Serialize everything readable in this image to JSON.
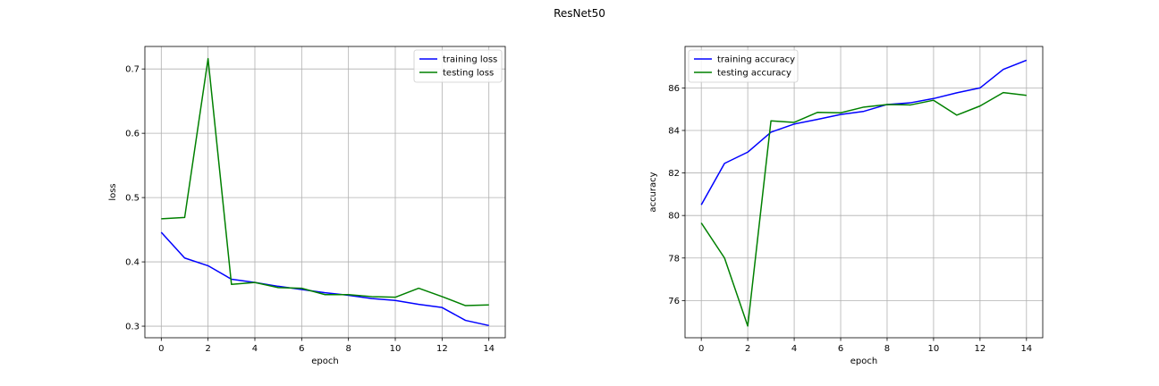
{
  "figure": {
    "title": "ResNet50"
  },
  "chart_data": [
    {
      "type": "line",
      "title": "",
      "xlabel": "epoch",
      "ylabel": "loss",
      "xlim": [
        -0.7,
        14.7
      ],
      "ylim": [
        0.282,
        0.735
      ],
      "xticks": [
        0,
        2,
        4,
        6,
        8,
        10,
        12,
        14
      ],
      "yticks": [
        0.3,
        0.4,
        0.5,
        0.6,
        0.7
      ],
      "grid": true,
      "legend_position": "top-right",
      "x": [
        0,
        1,
        2,
        3,
        4,
        5,
        6,
        7,
        8,
        9,
        10,
        11,
        12,
        13,
        14
      ],
      "series": [
        {
          "name": "training loss",
          "color": "#0000ff",
          "values": [
            0.446,
            0.406,
            0.394,
            0.373,
            0.368,
            0.362,
            0.357,
            0.352,
            0.348,
            0.343,
            0.34,
            0.334,
            0.329,
            0.309,
            0.301
          ]
        },
        {
          "name": "testing loss",
          "color": "#008000",
          "values": [
            0.467,
            0.469,
            0.716,
            0.365,
            0.368,
            0.36,
            0.359,
            0.349,
            0.349,
            0.346,
            0.345,
            0.359,
            0.346,
            0.332,
            0.333
          ]
        }
      ]
    },
    {
      "type": "line",
      "title": "",
      "xlabel": "epoch",
      "ylabel": "accuracy",
      "xlim": [
        -0.7,
        14.7
      ],
      "ylim": [
        74.25,
        87.95
      ],
      "xticks": [
        0,
        2,
        4,
        6,
        8,
        10,
        12,
        14
      ],
      "yticks": [
        76,
        78,
        80,
        82,
        84,
        86
      ],
      "grid": true,
      "legend_position": "top-left",
      "x": [
        0,
        1,
        2,
        3,
        4,
        5,
        6,
        7,
        8,
        9,
        10,
        11,
        12,
        13,
        14
      ],
      "series": [
        {
          "name": "training accuracy",
          "color": "#0000ff",
          "values": [
            80.5,
            82.45,
            82.98,
            83.92,
            84.3,
            84.52,
            84.75,
            84.9,
            85.22,
            85.3,
            85.5,
            85.77,
            86.0,
            86.87,
            87.3
          ]
        },
        {
          "name": "testing accuracy",
          "color": "#008000",
          "values": [
            79.65,
            78.0,
            74.8,
            84.45,
            84.38,
            84.85,
            84.83,
            85.1,
            85.22,
            85.2,
            85.42,
            84.72,
            85.15,
            85.78,
            85.65
          ]
        }
      ]
    }
  ]
}
